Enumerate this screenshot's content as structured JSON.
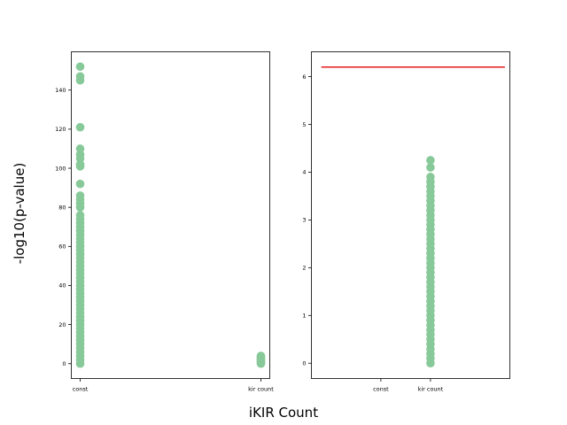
{
  "figure": {
    "ylabel": "-log10(p-value)",
    "xlabel": "iKIR Count"
  },
  "chart_data": [
    {
      "type": "scatter",
      "categories": [
        "const",
        "kir count"
      ],
      "ylim": [
        -7.6,
        159.6
      ],
      "yticks": [
        0,
        20,
        40,
        60,
        80,
        100,
        120,
        140
      ],
      "color": "#88c999",
      "series": [
        {
          "category": "const",
          "values": [
            152,
            147,
            145,
            121,
            110,
            107,
            105,
            102,
            101,
            92,
            86,
            84,
            82,
            80,
            76,
            74,
            72,
            70,
            68,
            66,
            64,
            62,
            60,
            58,
            56,
            54,
            52,
            50,
            48,
            46,
            44,
            42,
            40,
            38,
            36,
            34,
            32,
            30,
            28,
            26,
            24,
            22,
            20,
            18,
            16,
            14,
            12,
            10,
            8,
            6,
            4,
            2,
            0
          ]
        },
        {
          "category": "kir count",
          "values": [
            4,
            3.5,
            3,
            2.5,
            2,
            1.5,
            1,
            0.5,
            0
          ]
        }
      ]
    },
    {
      "type": "scatter",
      "categories": [
        "const",
        "kir count"
      ],
      "xlim": [
        -1.4,
        2.6
      ],
      "ylim": [
        -0.32,
        6.52
      ],
      "yticks": [
        0,
        1,
        2,
        3,
        4,
        5,
        6
      ],
      "color": "#88c999",
      "threshold_line": {
        "y": 6.2,
        "x_from": -1.2,
        "x_to": 2.5,
        "color": "#e41a1c"
      },
      "series": [
        {
          "category": "kir count",
          "values": [
            4.25,
            4.1,
            3.9,
            3.8,
            3.7,
            3.6,
            3.5,
            3.4,
            3.3,
            3.2,
            3.1,
            3.0,
            2.9,
            2.8,
            2.7,
            2.6,
            2.5,
            2.4,
            2.3,
            2.2,
            2.1,
            2.0,
            1.9,
            1.8,
            1.7,
            1.6,
            1.5,
            1.4,
            1.3,
            1.2,
            1.1,
            1.0,
            0.9,
            0.8,
            0.7,
            0.6,
            0.5,
            0.4,
            0.3,
            0.2,
            0.1,
            0.0
          ]
        }
      ]
    }
  ]
}
